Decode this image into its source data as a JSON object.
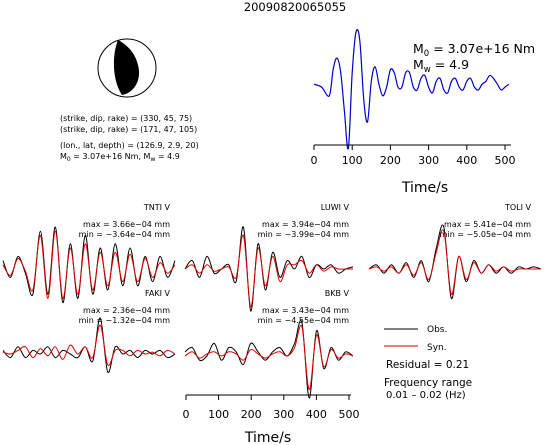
{
  "figure_title": "20090820065055",
  "source_params": {
    "strike_dip_rake_1": "(strike, dip, rake) = (330, 45, 75)",
    "strike_dip_rake_2": "(strike, dip, rake) = (171, 47, 105)",
    "location": "(lon., lat, depth) = (126.9, 2.9, 20)",
    "moment_prefix": "M",
    "moment_sub": "0",
    "moment_value": " = 3.07e+16 Nm, M",
    "mw_sub": "w",
    "mw_value": " = 4.9"
  },
  "stf_annotation": {
    "m0_main": "M",
    "m0_sub": "0",
    "m0_value": " = 3.07e+16 Nm",
    "mw_main": "M",
    "mw_sub": "w",
    "mw_value": " = 4.9"
  },
  "legend": {
    "obs_label": "Obs.",
    "syn_label": "Syn.",
    "residual": "Residual = 0.21",
    "freq_label": "Frequency range",
    "freq_value": "0.01 – 0.02 (Hz)"
  },
  "colors": {
    "obs": "#000000",
    "syn": "#e00000",
    "stf": "#0000cc",
    "beachball_fill": "#000000"
  },
  "chart_data": [
    {
      "type": "line",
      "name": "source-time-function",
      "xlabel": "Time/s",
      "xlim": [
        0,
        510
      ],
      "xticks": [
        0,
        100,
        200,
        300,
        400,
        500
      ],
      "series": [
        {
          "x": [
            0,
            20,
            40,
            50,
            60,
            70,
            80,
            90,
            100,
            110,
            120,
            130,
            140,
            150,
            160,
            170,
            180,
            190,
            200,
            210,
            220,
            230,
            240,
            250,
            260,
            270,
            280,
            290,
            300,
            310,
            320,
            330,
            340,
            350,
            360,
            370,
            380,
            390,
            400,
            410,
            420,
            430,
            440,
            450,
            460,
            470,
            480,
            490,
            500,
            510
          ],
          "y": [
            0.1,
            0.05,
            -0.1,
            0.35,
            0.55,
            0.3,
            -0.4,
            -1.0,
            0.3,
            1.0,
            0.85,
            -0.15,
            -0.55,
            0.15,
            0.4,
            0.1,
            -0.1,
            0.05,
            0.35,
            0.3,
            0.05,
            0.05,
            0.3,
            0.3,
            0.05,
            0.0,
            0.2,
            0.25,
            0.05,
            -0.05,
            0.15,
            0.2,
            0.0,
            -0.05,
            0.15,
            0.2,
            0.05,
            0.0,
            0.15,
            0.2,
            0.05,
            0.0,
            0.1,
            0.15,
            0.25,
            0.2,
            0.1,
            0.0,
            0.05,
            0.1
          ]
        }
      ]
    },
    {
      "type": "line",
      "name": "waveforms",
      "xlabel": "Time/s",
      "xlim": [
        0,
        510
      ],
      "xticks": [
        0,
        100,
        200,
        300,
        400,
        500
      ],
      "stations": [
        {
          "station": "TNTI V",
          "max": "max = 3.66e−04 mm",
          "min": "min = −3.64e−04 mm",
          "obs": [
            0.2,
            -0.2,
            0.3,
            -0.1,
            -0.6,
            0.9,
            -0.6,
            1.0,
            -0.8,
            0.6,
            -0.7,
            0.8,
            -0.6,
            0.5,
            -0.5,
            0.6,
            -0.4,
            0.5,
            -0.4,
            0.3,
            -0.3,
            0.3,
            -0.2,
            0.2
          ],
          "syn": [
            0.1,
            -0.15,
            0.25,
            -0.05,
            -0.5,
            0.8,
            -0.7,
            0.9,
            -0.7,
            0.5,
            -0.6,
            0.6,
            -0.5,
            0.4,
            -0.4,
            0.4,
            -0.3,
            0.35,
            -0.3,
            0.25,
            -0.2,
            0.15,
            -0.1,
            0.1
          ]
        },
        {
          "station": "LUWI V",
          "max": "max = 3.94e−04 mm",
          "min": "min = −3.99e−04 mm",
          "obs": [
            0.0,
            0.2,
            -0.2,
            0.3,
            -0.1,
            0.0,
            0.1,
            -0.3,
            1.0,
            -1.0,
            0.6,
            -0.5,
            0.4,
            -0.2,
            0.2,
            0.0,
            0.3,
            -0.2,
            0.1,
            0.0,
            0.1,
            -0.1,
            0.0,
            0.05
          ],
          "syn": [
            0.0,
            0.1,
            -0.1,
            0.1,
            -0.05,
            0.0,
            0.05,
            -0.2,
            0.8,
            -0.9,
            0.5,
            -0.4,
            0.3,
            -0.3,
            0.1,
            0.1,
            0.2,
            -0.1,
            0.1,
            -0.05,
            0.05,
            0.0,
            0.0,
            0.0
          ]
        },
        {
          "station": "TOLI V",
          "max": "max = 5.41e−04 mm",
          "min": "min = −5.05e−04 mm",
          "obs": [
            0.0,
            0.1,
            -0.1,
            0.1,
            -0.1,
            0.15,
            -0.2,
            0.2,
            -0.3,
            0.5,
            1.0,
            -0.7,
            0.3,
            -0.3,
            0.2,
            -0.1,
            0.1,
            -0.1,
            0.05,
            -0.1,
            0.05,
            0.0,
            0.05,
            0.0
          ],
          "syn": [
            0.0,
            0.05,
            -0.05,
            0.05,
            -0.1,
            0.1,
            -0.15,
            0.15,
            -0.25,
            0.4,
            0.9,
            -0.6,
            0.3,
            -0.25,
            0.15,
            -0.1,
            0.1,
            -0.05,
            0.05,
            -0.05,
            0.0,
            0.0,
            0.0,
            0.0
          ]
        },
        {
          "station": "FAKI V",
          "max": "max = 2.36e−04 mm",
          "min": "min = −1.32e−04 mm",
          "obs": [
            0.1,
            -0.1,
            0.2,
            -0.1,
            0.1,
            0.0,
            0.2,
            -0.1,
            0.1,
            0.0,
            -0.1,
            0.2,
            -0.2,
            1.0,
            -0.5,
            0.2,
            0.0,
            0.1,
            -0.1,
            0.1,
            0.0,
            0.1,
            -0.1,
            0.0
          ],
          "syn": [
            0.05,
            0.0,
            0.1,
            0.2,
            -0.1,
            0.15,
            -0.05,
            0.2,
            -0.15,
            0.25,
            0.0,
            0.2,
            -0.1,
            0.8,
            -0.3,
            0.1,
            0.1,
            -0.05,
            0.1,
            0.0,
            0.05,
            -0.05,
            0.1,
            0.0
          ]
        },
        {
          "station": "BKB V",
          "max": "max = 3.43e−04 mm",
          "min": "min = −4.55e−04 mm",
          "obs": [
            0.1,
            0.2,
            -0.1,
            0.0,
            0.3,
            -0.1,
            0.2,
            0.1,
            -0.2,
            0.3,
            0.1,
            -0.1,
            0.1,
            0.2,
            0.0,
            0.3,
            0.8,
            -1.0,
            0.6,
            -0.3,
            0.2,
            -0.1,
            0.1,
            0.0
          ],
          "syn": [
            0.0,
            0.1,
            -0.05,
            0.05,
            0.1,
            0.0,
            0.1,
            0.05,
            -0.1,
            0.15,
            0.05,
            -0.05,
            0.05,
            0.1,
            0.0,
            0.2,
            0.7,
            -0.8,
            0.5,
            -0.25,
            0.15,
            -0.05,
            0.05,
            0.0
          ]
        }
      ]
    }
  ]
}
